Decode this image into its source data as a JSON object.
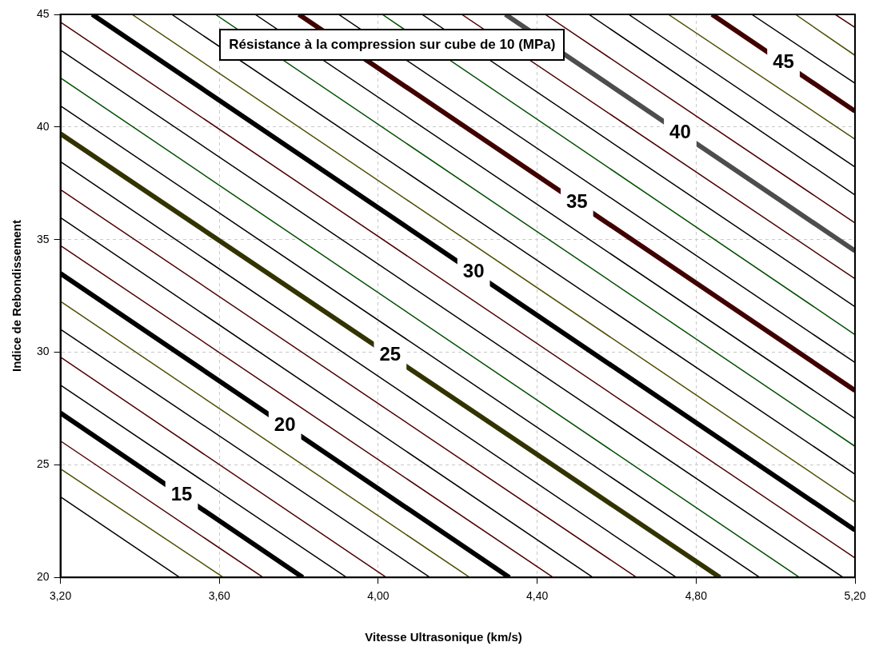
{
  "chart_data": {
    "type": "line",
    "title": "Résistance à la compression sur cube de 10 (MPa)",
    "xlabel": "Vitesse Ultrasonique (km/s)",
    "ylabel": "Indice de Rebondissement",
    "xlim": [
      3.2,
      5.2
    ],
    "ylim": [
      20,
      45
    ],
    "xticks": [
      {
        "value": 3.2,
        "label": "3,20"
      },
      {
        "value": 3.6,
        "label": "3,60"
      },
      {
        "value": 4.0,
        "label": "4,00"
      },
      {
        "value": 4.4,
        "label": "4,40"
      },
      {
        "value": 4.8,
        "label": "4,80"
      },
      {
        "value": 5.2,
        "label": "5,20"
      }
    ],
    "yticks": [
      20,
      25,
      30,
      35,
      40,
      45
    ],
    "grid": true,
    "legend": false,
    "marker": "none",
    "line_style": "solid",
    "series": [
      {
        "color": "#000000",
        "x": [
          3.2,
          3.5
        ],
        "values": [
          23.58,
          20
        ]
      },
      {
        "color": "#4d4d00",
        "x": [
          3.2,
          3.61
        ],
        "values": [
          24.82,
          20
        ]
      },
      {
        "color": "#4d0000",
        "x": [
          3.2,
          3.71
        ],
        "values": [
          26.06,
          20
        ]
      },
      {
        "name": "15",
        "color": "#000000",
        "x": [
          3.2,
          3.81
        ],
        "values": [
          27.3,
          20
        ]
      },
      {
        "color": "#000000",
        "x": [
          3.2,
          3.92
        ],
        "values": [
          28.54,
          20
        ]
      },
      {
        "color": "#4d0000",
        "x": [
          3.2,
          4.02
        ],
        "values": [
          29.78,
          20
        ]
      },
      {
        "color": "#000000",
        "x": [
          3.2,
          4.13
        ],
        "values": [
          31.02,
          20
        ]
      },
      {
        "color": "#4d4d00",
        "x": [
          3.2,
          4.23
        ],
        "values": [
          32.26,
          20
        ]
      },
      {
        "name": "20",
        "color": "#000000",
        "x": [
          3.2,
          4.33
        ],
        "values": [
          33.5,
          20
        ]
      },
      {
        "color": "#4d0000",
        "x": [
          3.2,
          4.44
        ],
        "values": [
          34.74,
          20
        ]
      },
      {
        "color": "#000000",
        "x": [
          3.2,
          4.54
        ],
        "values": [
          35.98,
          20
        ]
      },
      {
        "color": "#4d0000",
        "x": [
          3.2,
          4.65
        ],
        "values": [
          37.22,
          20
        ]
      },
      {
        "color": "#000000",
        "x": [
          3.2,
          4.75
        ],
        "values": [
          38.46,
          20
        ]
      },
      {
        "name": "25",
        "color": "#333300",
        "x": [
          3.2,
          4.86
        ],
        "values": [
          39.7,
          20
        ]
      },
      {
        "color": "#000000",
        "x": [
          3.2,
          4.96
        ],
        "values": [
          40.94,
          20
        ]
      },
      {
        "color": "#004d00",
        "x": [
          3.2,
          5.06
        ],
        "values": [
          42.18,
          20
        ]
      },
      {
        "color": "#000000",
        "x": [
          3.2,
          5.17
        ],
        "values": [
          43.42,
          20
        ]
      },
      {
        "color": "#4d0000",
        "x": [
          3.2,
          5.2
        ],
        "values": [
          44.66,
          20.86
        ]
      },
      {
        "name": "30",
        "color": "#000000",
        "x": [
          3.28,
          5.2
        ],
        "values": [
          45,
          22.1
        ]
      },
      {
        "color": "#4d4d00",
        "x": [
          3.38,
          5.2
        ],
        "values": [
          45,
          23.34
        ]
      },
      {
        "color": "#000000",
        "x": [
          3.48,
          5.2
        ],
        "values": [
          45,
          24.58
        ]
      },
      {
        "color": "#004d00",
        "x": [
          3.59,
          5.2
        ],
        "values": [
          45,
          25.82
        ]
      },
      {
        "color": "#000000",
        "x": [
          3.69,
          5.2
        ],
        "values": [
          45,
          27.06
        ]
      },
      {
        "name": "35",
        "color": "#400000",
        "x": [
          3.8,
          5.2
        ],
        "values": [
          45,
          28.3
        ]
      },
      {
        "color": "#000000",
        "x": [
          3.9,
          5.2
        ],
        "values": [
          45,
          29.54
        ]
      },
      {
        "color": "#004d00",
        "x": [
          4.01,
          5.2
        ],
        "values": [
          45,
          30.78
        ]
      },
      {
        "color": "#000000",
        "x": [
          4.11,
          5.2
        ],
        "values": [
          45,
          32.02
        ]
      },
      {
        "color": "#4d0000",
        "x": [
          4.21,
          5.2
        ],
        "values": [
          45,
          33.26
        ]
      },
      {
        "name": "40",
        "color": "#4d4d4d",
        "x": [
          4.32,
          5.2
        ],
        "values": [
          45,
          34.5
        ]
      },
      {
        "color": "#4d0000",
        "x": [
          4.42,
          5.2
        ],
        "values": [
          45,
          35.74
        ]
      },
      {
        "color": "#000000",
        "x": [
          4.53,
          5.2
        ],
        "values": [
          45,
          36.98
        ]
      },
      {
        "color": "#000000",
        "x": [
          4.63,
          5.2
        ],
        "values": [
          45,
          38.22
        ]
      },
      {
        "color": "#4d4d00",
        "x": [
          4.73,
          5.2
        ],
        "values": [
          45,
          39.46
        ]
      },
      {
        "name": "45",
        "color": "#400000",
        "x": [
          4.84,
          5.2
        ],
        "values": [
          45,
          40.7
        ]
      },
      {
        "color": "#000000",
        "x": [
          4.94,
          5.2
        ],
        "values": [
          45,
          41.94
        ]
      },
      {
        "color": "#4d4d00",
        "x": [
          5.05,
          5.2
        ],
        "values": [
          45,
          43.18
        ]
      },
      {
        "color": "#4d0000",
        "x": [
          5.15,
          5.2
        ],
        "values": [
          45,
          44.42
        ]
      }
    ]
  }
}
